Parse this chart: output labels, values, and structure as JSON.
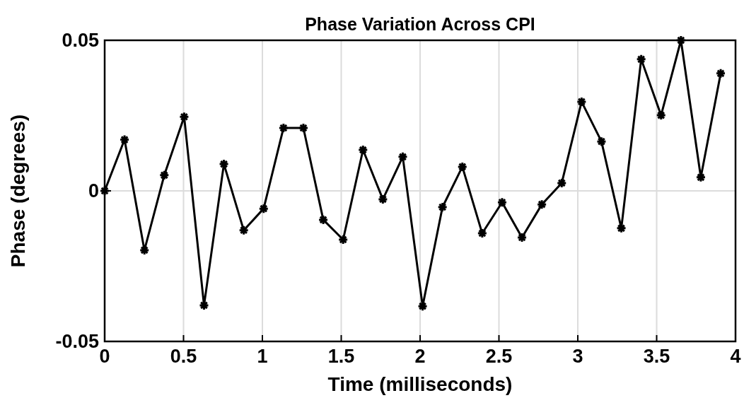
{
  "chart_data": {
    "type": "line",
    "title": "Phase Variation Across CPI",
    "xlabel": "Time (milliseconds)",
    "ylabel": "Phase (degrees)",
    "x": [
      0,
      0.126,
      0.252,
      0.378,
      0.504,
      0.63,
      0.756,
      0.882,
      1.008,
      1.134,
      1.26,
      1.386,
      1.512,
      1.638,
      1.764,
      1.89,
      2.016,
      2.142,
      2.268,
      2.394,
      2.52,
      2.646,
      2.772,
      2.898,
      3.024,
      3.15,
      3.276,
      3.402,
      3.528,
      3.654,
      3.78,
      3.906
    ],
    "series": [
      {
        "color": "#000000",
        "values": [
          0,
          0.017,
          -0.0197,
          0.0052,
          0.0246,
          -0.038,
          0.0089,
          -0.0131,
          -0.0059,
          0.0209,
          0.0209,
          -0.0096,
          -0.0162,
          0.0136,
          -0.0028,
          0.0113,
          -0.0383,
          -0.0054,
          0.008,
          -0.0141,
          -0.0038,
          -0.0155,
          -0.0045,
          0.0026,
          0.0296,
          0.0164,
          -0.0124,
          0.0437,
          0.0251,
          0.05,
          0.0045,
          0.039
        ]
      }
    ],
    "xlim": [
      0,
      4
    ],
    "xticks": [
      0,
      0.5,
      1,
      1.5,
      2,
      2.5,
      3,
      3.5,
      4
    ],
    "ylim": [
      -0.05,
      0.05
    ],
    "yticks": [
      -0.05,
      0,
      0.05
    ],
    "grid": true,
    "marker": "cross",
    "line_style": "solid"
  }
}
